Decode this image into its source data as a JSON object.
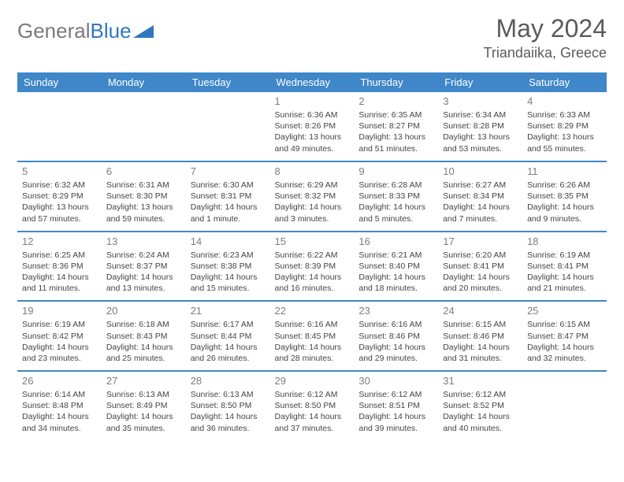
{
  "logo": {
    "part1": "General",
    "part2": "Blue"
  },
  "title": "May 2024",
  "location": "Triandaiika, Greece",
  "colors": {
    "header_bg": "#3f87c8",
    "header_text": "#ffffff",
    "rule": "#3f87c8",
    "daynum": "#7d7d7d",
    "text": "#444444",
    "title": "#5a5a5a",
    "logo_gray": "#7a7a7a",
    "logo_blue": "#2f78bf"
  },
  "layout": {
    "columns": 7,
    "rows": 5,
    "th_fontsize": 13,
    "cell_fontsize": 10.5
  },
  "weekdays": [
    "Sunday",
    "Monday",
    "Tuesday",
    "Wednesday",
    "Thursday",
    "Friday",
    "Saturday"
  ],
  "weeks": [
    [
      null,
      null,
      null,
      {
        "n": "1",
        "sr": "6:36 AM",
        "ss": "8:26 PM",
        "dl": "13 hours and 49 minutes."
      },
      {
        "n": "2",
        "sr": "6:35 AM",
        "ss": "8:27 PM",
        "dl": "13 hours and 51 minutes."
      },
      {
        "n": "3",
        "sr": "6:34 AM",
        "ss": "8:28 PM",
        "dl": "13 hours and 53 minutes."
      },
      {
        "n": "4",
        "sr": "6:33 AM",
        "ss": "8:29 PM",
        "dl": "13 hours and 55 minutes."
      }
    ],
    [
      {
        "n": "5",
        "sr": "6:32 AM",
        "ss": "8:29 PM",
        "dl": "13 hours and 57 minutes."
      },
      {
        "n": "6",
        "sr": "6:31 AM",
        "ss": "8:30 PM",
        "dl": "13 hours and 59 minutes."
      },
      {
        "n": "7",
        "sr": "6:30 AM",
        "ss": "8:31 PM",
        "dl": "14 hours and 1 minute."
      },
      {
        "n": "8",
        "sr": "6:29 AM",
        "ss": "8:32 PM",
        "dl": "14 hours and 3 minutes."
      },
      {
        "n": "9",
        "sr": "6:28 AM",
        "ss": "8:33 PM",
        "dl": "14 hours and 5 minutes."
      },
      {
        "n": "10",
        "sr": "6:27 AM",
        "ss": "8:34 PM",
        "dl": "14 hours and 7 minutes."
      },
      {
        "n": "11",
        "sr": "6:26 AM",
        "ss": "8:35 PM",
        "dl": "14 hours and 9 minutes."
      }
    ],
    [
      {
        "n": "12",
        "sr": "6:25 AM",
        "ss": "8:36 PM",
        "dl": "14 hours and 11 minutes."
      },
      {
        "n": "13",
        "sr": "6:24 AM",
        "ss": "8:37 PM",
        "dl": "14 hours and 13 minutes."
      },
      {
        "n": "14",
        "sr": "6:23 AM",
        "ss": "8:38 PM",
        "dl": "14 hours and 15 minutes."
      },
      {
        "n": "15",
        "sr": "6:22 AM",
        "ss": "8:39 PM",
        "dl": "14 hours and 16 minutes."
      },
      {
        "n": "16",
        "sr": "6:21 AM",
        "ss": "8:40 PM",
        "dl": "14 hours and 18 minutes."
      },
      {
        "n": "17",
        "sr": "6:20 AM",
        "ss": "8:41 PM",
        "dl": "14 hours and 20 minutes."
      },
      {
        "n": "18",
        "sr": "6:19 AM",
        "ss": "8:41 PM",
        "dl": "14 hours and 21 minutes."
      }
    ],
    [
      {
        "n": "19",
        "sr": "6:19 AM",
        "ss": "8:42 PM",
        "dl": "14 hours and 23 minutes."
      },
      {
        "n": "20",
        "sr": "6:18 AM",
        "ss": "8:43 PM",
        "dl": "14 hours and 25 minutes."
      },
      {
        "n": "21",
        "sr": "6:17 AM",
        "ss": "8:44 PM",
        "dl": "14 hours and 26 minutes."
      },
      {
        "n": "22",
        "sr": "6:16 AM",
        "ss": "8:45 PM",
        "dl": "14 hours and 28 minutes."
      },
      {
        "n": "23",
        "sr": "6:16 AM",
        "ss": "8:46 PM",
        "dl": "14 hours and 29 minutes."
      },
      {
        "n": "24",
        "sr": "6:15 AM",
        "ss": "8:46 PM",
        "dl": "14 hours and 31 minutes."
      },
      {
        "n": "25",
        "sr": "6:15 AM",
        "ss": "8:47 PM",
        "dl": "14 hours and 32 minutes."
      }
    ],
    [
      {
        "n": "26",
        "sr": "6:14 AM",
        "ss": "8:48 PM",
        "dl": "14 hours and 34 minutes."
      },
      {
        "n": "27",
        "sr": "6:13 AM",
        "ss": "8:49 PM",
        "dl": "14 hours and 35 minutes."
      },
      {
        "n": "28",
        "sr": "6:13 AM",
        "ss": "8:50 PM",
        "dl": "14 hours and 36 minutes."
      },
      {
        "n": "29",
        "sr": "6:12 AM",
        "ss": "8:50 PM",
        "dl": "14 hours and 37 minutes."
      },
      {
        "n": "30",
        "sr": "6:12 AM",
        "ss": "8:51 PM",
        "dl": "14 hours and 39 minutes."
      },
      {
        "n": "31",
        "sr": "6:12 AM",
        "ss": "8:52 PM",
        "dl": "14 hours and 40 minutes."
      },
      null
    ]
  ],
  "labels": {
    "sunrise": "Sunrise: ",
    "sunset": "Sunset: ",
    "daylight": "Daylight: "
  }
}
